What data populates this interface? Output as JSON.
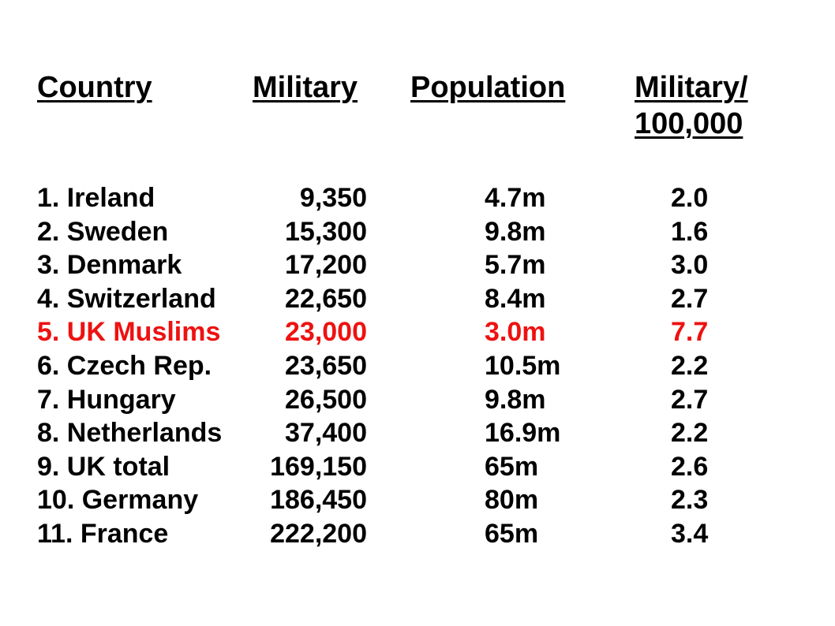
{
  "headers": {
    "country": "Country",
    "military": "Military",
    "population": "Population",
    "ratio_line1": "Military/",
    "ratio_line2": "100,000"
  },
  "colors": {
    "text": "#000000",
    "highlight": "#ee1111"
  },
  "rows": [
    {
      "country": "1. Ireland",
      "military": "9,350",
      "population": "4.7m",
      "ratio": "2.0"
    },
    {
      "country": "2. Sweden",
      "military": "15,300",
      "population": "9.8m",
      "ratio": "1.6"
    },
    {
      "country": "3. Denmark",
      "military": "17,200",
      "population": "5.7m",
      "ratio": "3.0"
    },
    {
      "country": "4. Switzerland",
      "military": "22,650",
      "population": "8.4m",
      "ratio": "2.7"
    },
    {
      "country": "5. UK Muslims",
      "military": "23,000",
      "population": "3.0m",
      "ratio": "7.7",
      "highlight": true
    },
    {
      "country": "6. Czech Rep.",
      "military": "23,650",
      "population": "10.5m",
      "ratio": "2.2"
    },
    {
      "country": "7. Hungary",
      "military": "26,500",
      "population": "9.8m",
      "ratio": "2.7"
    },
    {
      "country": "8. Netherlands",
      "military": "37,400",
      "population": "16.9m",
      "ratio": "2.2"
    },
    {
      "country": "9. UK total",
      "military": "169,150",
      "population": "65m",
      "ratio": "2.6"
    },
    {
      "country": "10. Germany",
      "military": "186,450",
      "population": "80m",
      "ratio": "2.3"
    },
    {
      "country": "11. France",
      "military": "222,200",
      "population": "65m",
      "ratio": "3.4"
    }
  ]
}
